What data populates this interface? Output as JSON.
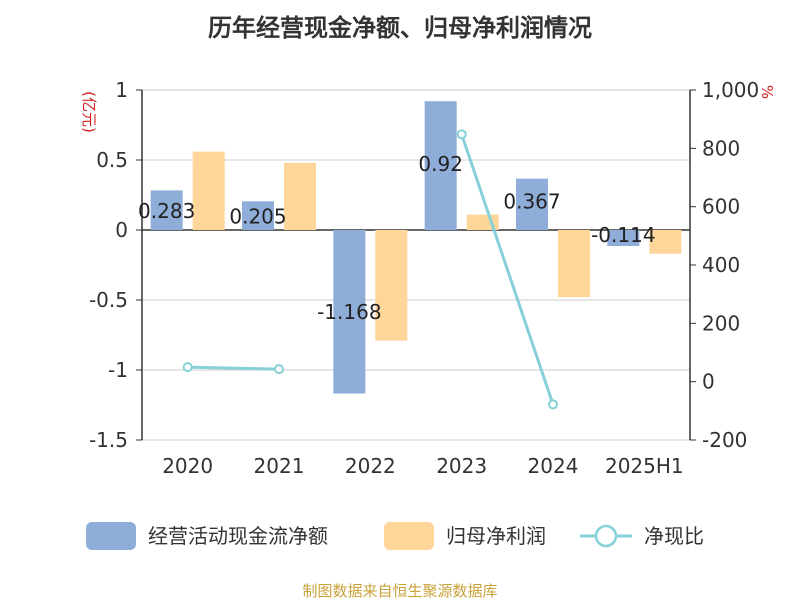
{
  "title": "历年经营现金净额、归母净利润情况",
  "footer": "制图数据来自恒生聚源数据库",
  "chart_data": {
    "type": "bar",
    "title": "历年经营现金净额、归母净利润情况",
    "categories": [
      "2020",
      "2021",
      "2022",
      "2023",
      "2024",
      "2025H1"
    ],
    "left_axis": {
      "unit": "(亿元)",
      "ylim": [
        -1.5,
        1
      ],
      "ticks": [
        1,
        0.5,
        0,
        -0.5,
        -1,
        -1.5
      ],
      "tick_labels": [
        "1",
        "0.5",
        "0",
        "-0.5",
        "-1",
        "-1.5"
      ]
    },
    "right_axis": {
      "unit": "%",
      "ylim": [
        -200,
        1000
      ],
      "ticks": [
        1000,
        800,
        600,
        400,
        200,
        0,
        -200
      ],
      "tick_labels": [
        "1,000",
        "800",
        "600",
        "400",
        "200",
        "0",
        "-200"
      ]
    },
    "series": [
      {
        "name": "经营活动现金流净额",
        "kind": "bar",
        "axis": "left",
        "color": "#8eadd9",
        "values": [
          0.283,
          0.205,
          -1.168,
          0.92,
          0.367,
          -0.114
        ],
        "data_labels": [
          "0.283",
          "0.205",
          "-1.168",
          "0.92",
          "0.367",
          "-0.114"
        ]
      },
      {
        "name": "归母净利润",
        "kind": "bar",
        "axis": "left",
        "color": "#ffd699",
        "values": [
          0.56,
          0.48,
          -0.79,
          0.11,
          -0.48,
          -0.17
        ]
      },
      {
        "name": "净现比",
        "kind": "line",
        "axis": "right",
        "color": "#86d0d8",
        "values": [
          50,
          43,
          null,
          848,
          -78,
          null
        ]
      }
    ],
    "grid": true,
    "legend": "bottom"
  }
}
